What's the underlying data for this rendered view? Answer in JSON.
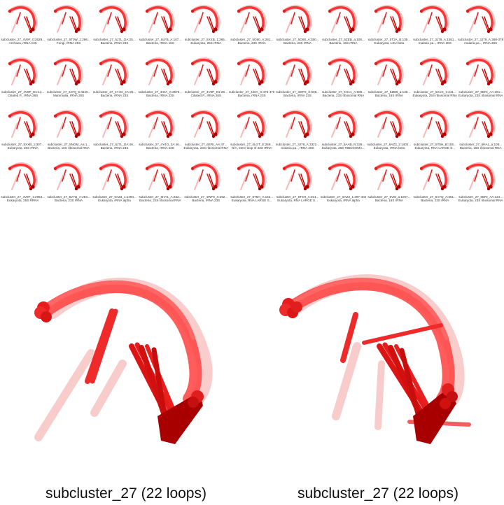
{
  "thumbnails": [
    {
      "name": "subcluster_27_4V9F_0:2629...",
      "desc": "Archaea, rRNA 23S"
    },
    {
      "name": "subcluster_27_5T0W_1:296...",
      "desc": "Fungi, rRNA 25S"
    },
    {
      "name": "subcluster_27_5J7L_DA:25...",
      "desc": "Bacteria, rRNA 23S"
    },
    {
      "name": "subcluster_27_6LFB_A:107...",
      "desc": "Bacteria, rRNA 16S"
    },
    {
      "name": "subcluster_27_5XXB_1:365...",
      "desc": "Eukaryota, 25S rRNA"
    },
    {
      "name": "subcluster_27_5O60_A:281...",
      "desc": "Bacteria, 23S rRNA"
    },
    {
      "name": "subcluster_27_5O60_A:350...",
      "desc": "Bacteria, 23S rRNA"
    },
    {
      "name": "subcluster_27_5ZEB_a:108...",
      "desc": "Bacteria, 16S rRNA"
    },
    {
      "name": "subcluster_27_5T2A_B:135...",
      "desc": "Eukaryota, LSU-beta"
    },
    {
      "name": "subcluster_27_3J79_A:1551...",
      "desc": "malaria pa.., rRNA 28S"
    },
    {
      "name": "subcluster_27_3J79_A:368-378",
      "desc": "malaria pa.., rRNA 28S"
    },
    {
      "name": "subcluster_27_4V8P_D1:14...",
      "desc": "Ciliated P., rRNA 26S"
    },
    {
      "name": "subcluster_27_3J7Q_5:4540...",
      "desc": "Mammalia, rRNA 28S"
    },
    {
      "name": "subcluster_27_4Y4O_2A:25...",
      "desc": "Bacteria, rRNA 23S"
    },
    {
      "name": "subcluster_27_4IOA_X:2573...",
      "desc": "Bacteria, rRNA 23S"
    },
    {
      "name": "subcluster_27_4V8P_D1:29...",
      "desc": "Ciliated P., rRNA 26S"
    },
    {
      "name": "subcluster_27_4IOA_X:473-476",
      "desc": "Bacteria, rRNA 23S"
    },
    {
      "name": "subcluster_27_4WF9_X:508...",
      "desc": "Bacteria, rRNA 23S"
    },
    {
      "name": "subcluster_27_6HA1_A:509...",
      "desc": "Bacteria, 23S ribosomal RNA"
    },
    {
      "name": "subcluster_27_5ZEB_a:136...",
      "desc": "Bacteria, 16S rRNA"
    },
    {
      "name": "subcluster_27_5X1G_1:341...",
      "desc": "Eukaryota, 25S ribosomal RNA"
    },
    {
      "name": "subcluster_27_6ERI_AA:261...",
      "desc": "Eukaryota, 23S ribosomal RNA"
    },
    {
      "name": "subcluster_27_5XXB_1:307...",
      "desc": "Eukaryota, 25S rRNA"
    },
    {
      "name": "subcluster_27_5NGM_Aa:1...",
      "desc": "Bacteria, 16S ribosomal RNA"
    },
    {
      "name": "subcluster_27_5J7L_DA:46...",
      "desc": "Bacteria, rRNA 23S"
    },
    {
      "name": "subcluster_27_4Y4O_2A:46...",
      "desc": "Bacteria, rRNA 23S"
    },
    {
      "name": "subcluster_27_6ERI_AA:47...",
      "desc": "Eukaryota, 23S ribosomal RNA"
    },
    {
      "name": "subcluster_27_4LGT_E:259...",
      "desc": "N/A, stem-loop of 23S rRNA"
    },
    {
      "name": "subcluster_27_3J79_A:3322...",
      "desc": "malaria pa.., rRNA 28S"
    },
    {
      "name": "subcluster_27_5AAB_N:328...",
      "desc": "Eukaryota, 26S RIBOSOMA..."
    },
    {
      "name": "subcluster_27_6AZ3_2:1402...",
      "desc": "Eukaryota, rRNA beta"
    },
    {
      "name": "subcluster_27_5T5H_B:103...",
      "desc": "Eukaryota, RNA LARGE S..."
    },
    {
      "name": "subcluster_27_6HA1_a:108...",
      "desc": "Bacteria, 16S ribosomal RNA"
    },
    {
      "name": "subcluster_27_4V9F_1:2963...",
      "desc": "Eukaryota, 25S RRNA"
    },
    {
      "name": "subcluster_27_5V7Q_A:283...",
      "desc": "Bacteria, 23S rRNA"
    },
    {
      "name": "subcluster_27_6AZ3_1:1494...",
      "desc": "Eukaryota, rRNA alpha"
    },
    {
      "name": "subcluster_27_6HA1_A:262...",
      "desc": "Bacteria, 23S ribosomal RNA"
    },
    {
      "name": "subcluster_27_4WF9_X:292...",
      "desc": "Bacteria, rRNA 23S"
    },
    {
      "name": "subcluster_27_5T5H_A:162...",
      "desc": "Eukaryota, RNA LARGE S..."
    },
    {
      "name": "subcluster_27_5T5H_A:401...",
      "desc": "Eukaryota, RNA LARGE S..."
    },
    {
      "name": "subcluster_27_6AZ3_1:397-402",
      "desc": "Eukaryota, rRNA alpha"
    },
    {
      "name": "subcluster_27_5V8I_a:1067...",
      "desc": "Bacteria, 16S rRNA"
    },
    {
      "name": "subcluster_27_5V7Q_A:551...",
      "desc": "Bacteria, 23S rRNA"
    },
    {
      "name": "subcluster_27_6ERI_AA:124...",
      "desc": "Eukaryota, 23S ribosomal RNA"
    }
  ],
  "panels": {
    "left_title": "subcluster_27 (22 loops)",
    "right_title": "subcluster_27 (22 loops)"
  },
  "colors": {
    "rna_bright": "#ff3333",
    "rna_mid": "#e01e1e",
    "rna_dark": "#b00000",
    "rna_faint": "#f59a9a"
  }
}
